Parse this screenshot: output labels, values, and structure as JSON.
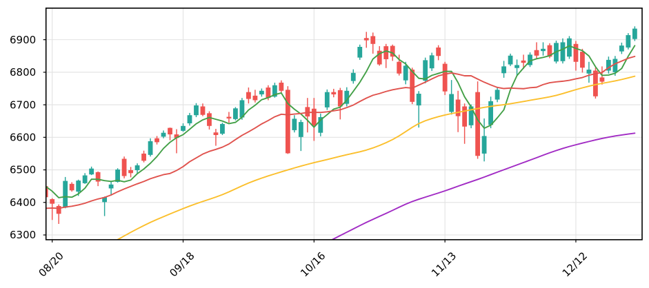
{
  "chart_data": {
    "type": "candlestick",
    "title": "",
    "x_axis": {
      "tick_labels": [
        "08/20",
        "09/18",
        "10/16",
        "11/13",
        "12/12"
      ],
      "tick_indices": [
        1,
        21,
        41,
        61,
        81
      ],
      "range": [
        0.053,
        91.12
      ]
    },
    "y_axis": {
      "ticks": [
        6300,
        6400,
        6500,
        6600,
        6700,
        6800,
        6900
      ],
      "range": [
        6285.4,
        6997.0
      ]
    },
    "grid": true,
    "legend_position": "none",
    "candles": {
      "open": [
        6450,
        6410,
        6389,
        6384,
        6457,
        6433,
        6459,
        6486,
        6493,
        6401,
        6443,
        6463,
        6534,
        6499,
        6499,
        6550,
        6546,
        6597,
        6602,
        6629,
        6609,
        6620,
        6643,
        6668,
        6695,
        6674,
        6615,
        6611,
        6663,
        6656,
        6661,
        6739,
        6728,
        6732,
        6753,
        6725,
        6768,
        6746,
        6622,
        6601,
        6693,
        6688,
        6614,
        6692,
        6739,
        6745,
        6703,
        6773,
        6845,
        6905,
        6911,
        6866,
        6880,
        6881,
        6832,
        6775,
        6808,
        6698,
        6774,
        6812,
        6876,
        6826,
        6678,
        6716,
        6695,
        6637,
        6739,
        6550,
        6638,
        6716,
        6797,
        6824,
        6813,
        6836,
        6822,
        6868,
        6865,
        6883,
        6833,
        6834,
        6848,
        6887,
        6863,
        6796,
        6805,
        6784,
        6805,
        6800,
        6864,
        6876,
        6902
      ],
      "close": [
        6416,
        6396,
        6365,
        6466,
        6437,
        6467,
        6483,
        6504,
        6464,
        6416,
        6455,
        6501,
        6481,
        6490,
        6514,
        6528,
        6588,
        6585,
        6614,
        6609,
        6598,
        6635,
        6668,
        6698,
        6669,
        6635,
        6607,
        6641,
        6658,
        6689,
        6714,
        6718,
        6714,
        6743,
        6721,
        6760,
        6743,
        6551,
        6657,
        6647,
        6664,
        6636,
        6662,
        6739,
        6732,
        6695,
        6743,
        6798,
        6878,
        6898,
        6887,
        6824,
        6840,
        6848,
        6796,
        6820,
        6709,
        6734,
        6837,
        6852,
        6850,
        6741,
        6733,
        6665,
        6633,
        6695,
        6543,
        6604,
        6711,
        6746,
        6818,
        6851,
        6822,
        6829,
        6854,
        6851,
        6872,
        6848,
        6890,
        6892,
        6904,
        6832,
        6814,
        6808,
        6726,
        6771,
        6838,
        6841,
        6882,
        6914,
        6934
      ],
      "high": [
        6455,
        6413,
        6394,
        6478,
        6462,
        6470,
        6490,
        6510,
        6495,
        6418,
        6465,
        6505,
        6541,
        6509,
        6520,
        6559,
        6597,
        6604,
        6621,
        6630,
        6625,
        6643,
        6675,
        6705,
        6704,
        6680,
        6626,
        6645,
        6678,
        6693,
        6721,
        6753,
        6746,
        6750,
        6760,
        6768,
        6775,
        6757,
        6668,
        6654,
        6721,
        6721,
        6673,
        6747,
        6749,
        6752,
        6754,
        6809,
        6885,
        6924,
        6922,
        6880,
        6887,
        6885,
        6854,
        6832,
        6814,
        6742,
        6845,
        6860,
        6883,
        6832,
        6776,
        6743,
        6704,
        6701,
        6772,
        6658,
        6725,
        6754,
        6835,
        6857,
        6839,
        6854,
        6861,
        6892,
        6892,
        6889,
        6897,
        6904,
        6911,
        6896,
        6872,
        6832,
        6814,
        6818,
        6848,
        6850,
        6891,
        6920,
        6941
      ],
      "low": [
        6410,
        6346,
        6334,
        6382,
        6433,
        6420,
        6457,
        6484,
        6450,
        6358,
        6421,
        6461,
        6474,
        6477,
        6488,
        6523,
        6541,
        6578,
        6597,
        6591,
        6551,
        6617,
        6636,
        6662,
        6665,
        6624,
        6574,
        6607,
        6645,
        6652,
        6654,
        6704,
        6707,
        6725,
        6714,
        6722,
        6736,
        6549,
        6615,
        6558,
        6615,
        6589,
        6603,
        6684,
        6723,
        6655,
        6695,
        6765,
        6838,
        6875,
        6857,
        6820,
        6813,
        6835,
        6790,
        6763,
        6702,
        6630,
        6766,
        6804,
        6837,
        6730,
        6670,
        6616,
        6580,
        6628,
        6534,
        6526,
        6628,
        6708,
        6783,
        6819,
        6789,
        6810,
        6816,
        6842,
        6851,
        6843,
        6827,
        6827,
        6841,
        6805,
        6799,
        6768,
        6719,
        6762,
        6796,
        6789,
        6856,
        6870,
        6896
      ]
    },
    "colors": {
      "up": "#26a69a",
      "down": "#ef5350",
      "grid": "#e2e2e2",
      "spine": "#000000",
      "tick_text": "#000000"
    },
    "overlays": [
      {
        "name": "ma-fast",
        "color": "#43a047",
        "start_index": 0,
        "values": [
          6449.2,
          6434.4,
          6414.4,
          6417.6,
          6416.0,
          6426.2,
          6443.6,
          6471.4,
          6471.0,
          6466.8,
          6464.4,
          6468.0,
          6463.4,
          6468.6,
          6488.2,
          6502.8,
          6520.2,
          6541.0,
          6565.8,
          6584.8,
          6598.8,
          6608.2,
          6624.8,
          6641.6,
          6653.6,
          6661.0,
          6655.4,
          6650.0,
          6642.0,
          6646.0,
          6661.8,
          6684.0,
          6698.6,
          6715.6,
          6722.0,
          6731.2,
          6736.2,
          6703.6,
          6686.4,
          6671.6,
          6652.4,
          6631.0,
          6653.2,
          6669.6,
          6686.6,
          6692.8,
          6714.2,
          6741.4,
          6769.2,
          6802.4,
          6840.8,
          6857.0,
          6865.4,
          6859.4,
          6839.0,
          6825.6,
          6802.6,
          6781.4,
          6779.2,
          6790.4,
          6796.4,
          6802.8,
          6802.6,
          6768.2,
          6724.4,
          6693.4,
          6653.8,
          6628.0,
          6637.2,
          6659.8,
          6684.4,
          6746.0,
          6789.6,
          6813.2,
          6834.8,
          6841.4,
          6845.6,
          6850.8,
          6863.0,
          6870.6,
          6881.2,
          6873.2,
          6866.4,
          6850.0,
          6816.8,
          6790.2,
          6791.4,
          6796.8,
          6811.6,
          6849.2,
          6881.8
        ]
      },
      {
        "name": "ma-medium",
        "color": "#e0524d",
        "start_index": 0,
        "values": [
          6381.9,
          6382.7,
          6381.8,
          6385.7,
          6388.2,
          6392.2,
          6397.4,
          6404.5,
          6410.6,
          6415.4,
          6422.9,
          6432.7,
          6441.2,
          6449.2,
          6457.1,
          6464.3,
          6472.8,
          6479.3,
          6485.3,
          6488.9,
          6498.1,
          6510.0,
          6525.1,
          6536.8,
          6548.4,
          6556.8,
          6562.9,
          6569.8,
          6579.5,
          6593.1,
          6606.1,
          6616.9,
          6628.6,
          6641.2,
          6651.6,
          6663.2,
          6670.9,
          6669.2,
          6671.4,
          6673.3,
          6676.6,
          6676.6,
          6676.4,
          6678.4,
          6681.6,
          6684.6,
          6691.4,
          6699.2,
          6710.2,
          6720.6,
          6729.3,
          6734.6,
          6740.9,
          6746.1,
          6749.9,
          6752.9,
          6751.2,
          6760.4,
          6769.4,
          6779.6,
          6788.9,
          6794.1,
          6797.7,
          6794.0,
          6789.1,
          6789.1,
          6779.1,
          6769.4,
          6761.0,
          6753.4,
          6749.9,
          6751.3,
          6750.4,
          6749.4,
          6752.4,
          6753.9,
          6762.1,
          6767.8,
          6770.4,
          6772.4,
          6775.1,
          6779.6,
          6783.7,
          6790.9,
          6795.5,
          6799.3,
          6814.1,
          6825.9,
          6834.4,
          6842.9,
          6848.6
        ]
      },
      {
        "name": "ma-slow",
        "color": "#fbbf2c",
        "start_index": 7,
        "values": [
          6240.7,
          6252.0,
          6263.2,
          6274.5,
          6285.7,
          6296.9,
          6308.0,
          6318.6,
          6328.9,
          6338.6,
          6347.7,
          6356.2,
          6364.5,
          6372.9,
          6381.0,
          6388.8,
          6396.0,
          6402.9,
          6409.6,
          6416.4,
          6423.8,
          6432.3,
          6441.6,
          6450.8,
          6459.5,
          6467.4,
          6474.7,
          6481.4,
          6487.7,
          6493.8,
          6499.9,
          6505.9,
          6511.6,
          6517.0,
          6522.1,
          6527.0,
          6531.8,
          6536.8,
          6541.8,
          6546.6,
          6551.0,
          6555.5,
          6560.9,
          6567.4,
          6575.0,
          6583.5,
          6593.1,
          6604.5,
          6617.4,
          6630.7,
          6642.3,
          6650.9,
          6657.7,
          6663.5,
          6668.6,
          6672.9,
          6676.8,
          6680.7,
          6684.6,
          6688.5,
          6692.1,
          6695.1,
          6697.8,
          6700.4,
          6703.3,
          6706.6,
          6710.1,
          6713.7,
          6717.2,
          6720.7,
          6724.5,
          6728.9,
          6734.4,
          6740.5,
          6746.5,
          6752.0,
          6757.2,
          6761.9,
          6765.8,
          6769.5,
          6773.3,
          6777.7,
          6782.6,
          6787.8
        ]
      },
      {
        "name": "ma-long",
        "color": "#a12bc4",
        "start_index": 42,
        "values": [
          6267.1,
          6277.4,
          6287.8,
          6298.1,
          6308.4,
          6318.6,
          6328.7,
          6338.6,
          6348.0,
          6357.1,
          6366.2,
          6375.6,
          6385.3,
          6394.5,
          6402.6,
          6409.7,
          6416.2,
          6422.6,
          6428.9,
          6435.5,
          6442.5,
          6449.8,
          6456.8,
          6463.7,
          6470.6,
          6477.9,
          6485.4,
          6493.0,
          6500.4,
          6507.8,
          6515.1,
          6522.5,
          6529.9,
          6537.4,
          6545.0,
          6552.4,
          6559.4,
          6565.9,
          6571.8,
          6577.1,
          6582.2,
          6587.2,
          6592.0,
          6596.5,
          6600.5,
          6604.1,
          6607.2,
          6610.0,
          6612.8
        ]
      }
    ]
  }
}
